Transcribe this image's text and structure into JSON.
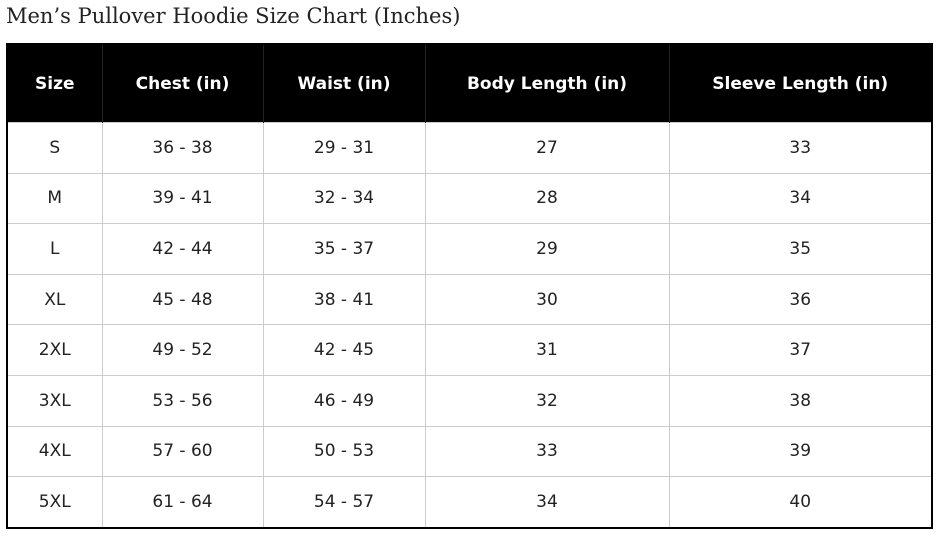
{
  "title": "Men’s Pullover Hoodie Size Chart (Inches)",
  "table": {
    "headers": [
      "Size",
      "Chest (in)",
      "Waist (in)",
      "Body Length (in)",
      "Sleeve Length (in)"
    ],
    "rows": [
      [
        "S",
        "36 - 38",
        "29 - 31",
        "27",
        "33"
      ],
      [
        "M",
        "39 - 41",
        "32 - 34",
        "28",
        "34"
      ],
      [
        "L",
        "42 - 44",
        "35 - 37",
        "29",
        "35"
      ],
      [
        "XL",
        "45 - 48",
        "38 - 41",
        "30",
        "36"
      ],
      [
        "2XL",
        "49 - 52",
        "42 - 45",
        "31",
        "37"
      ],
      [
        "3XL",
        "53 - 56",
        "46 - 49",
        "32",
        "38"
      ],
      [
        "4XL",
        "57 - 60",
        "50 - 53",
        "33",
        "39"
      ],
      [
        "5XL",
        "61 - 64",
        "54 - 57",
        "34",
        "40"
      ]
    ]
  },
  "colors": {
    "header_bg": "#000000",
    "header_text": "#ffffff",
    "grid": "#cccccc"
  }
}
